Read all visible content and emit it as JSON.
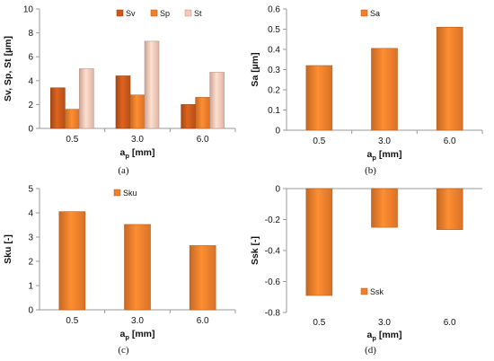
{
  "panels": [
    {
      "label": "(a)"
    },
    {
      "label": "(b)"
    },
    {
      "label": "(c)"
    },
    {
      "label": "(d)"
    }
  ],
  "colors": {
    "orange_dark": "#c8581b",
    "orange": "#f07f2c",
    "orange_light": "#f7c7b8",
    "axis": "#9a9a9a",
    "text": "#111111"
  },
  "chart_data": [
    {
      "type": "bar",
      "categories": [
        "0.5",
        "3.0",
        "6.0"
      ],
      "series": [
        {
          "name": "Sv",
          "values": [
            3.4,
            4.4,
            2.0
          ],
          "color": "#c8581b"
        },
        {
          "name": "Sp",
          "values": [
            1.6,
            2.8,
            2.6
          ],
          "color": "#f07f2c"
        },
        {
          "name": "St",
          "values": [
            5.0,
            7.3,
            4.7
          ],
          "color": "#f7c7b8"
        }
      ],
      "title": "",
      "xlabel": "a",
      "xlabel_sub": "p",
      "xlabel_unit": "[mm]",
      "ylabel": "Sv, Sp, St [µm]",
      "ylim": [
        0,
        10
      ],
      "yticks": [
        "0",
        "2",
        "4",
        "6",
        "8",
        "10"
      ],
      "legend": "top-right",
      "grid": false
    },
    {
      "type": "bar",
      "categories": [
        "0.5",
        "3.0",
        "6.0"
      ],
      "series": [
        {
          "name": "Sa",
          "values": [
            0.32,
            0.405,
            0.51
          ],
          "color": "#f07f2c"
        }
      ],
      "title": "",
      "xlabel": "a",
      "xlabel_sub": "p",
      "xlabel_unit": "[mm]",
      "ylabel": "Sa [µm]",
      "ylim": [
        0,
        0.6
      ],
      "yticks": [
        "0",
        "0.1",
        "0.2",
        "0.3",
        "0.4",
        "0.5",
        "0.6"
      ],
      "legend": "top-center",
      "grid": false
    },
    {
      "type": "bar",
      "categories": [
        "0.5",
        "3.0",
        "6.0"
      ],
      "series": [
        {
          "name": "Sku",
          "values": [
            4.05,
            3.52,
            2.65
          ],
          "color": "#f07f2c"
        }
      ],
      "title": "",
      "xlabel": "a",
      "xlabel_sub": "p",
      "xlabel_unit": "[mm]",
      "ylabel": "Sku [-]",
      "ylim": [
        0,
        5
      ],
      "yticks": [
        "0",
        "1",
        "2",
        "3",
        "4",
        "5"
      ],
      "legend": "top-center",
      "grid": false
    },
    {
      "type": "bar",
      "categories": [
        "0.5",
        "3.0",
        "6.0"
      ],
      "series": [
        {
          "name": "Ssk",
          "values": [
            -0.69,
            -0.25,
            -0.265
          ],
          "color": "#f07f2c"
        }
      ],
      "title": "",
      "xlabel": "a",
      "xlabel_sub": "p",
      "xlabel_unit": "[mm]",
      "ylabel": "Ssk [-]",
      "ylim": [
        -0.8,
        0
      ],
      "yticks": [
        "-0.8",
        "-0.6",
        "-0.4",
        "-0.2",
        "0"
      ],
      "legend": "bottom-center",
      "grid": false
    }
  ]
}
